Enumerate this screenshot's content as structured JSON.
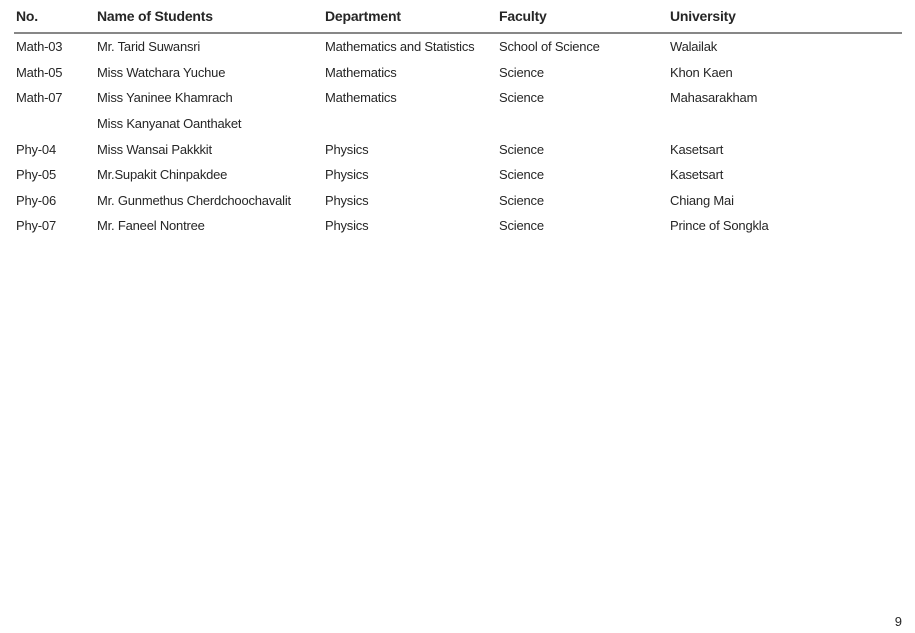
{
  "page": {
    "number": "9"
  },
  "colors": {
    "background": "#ffffff",
    "text": "#262626",
    "header_rule": "#878787"
  },
  "table": {
    "columns": [
      {
        "key": "no",
        "label": "No."
      },
      {
        "key": "name",
        "label": "Name of Students"
      },
      {
        "key": "department",
        "label": "Department"
      },
      {
        "key": "faculty",
        "label": "Faculty"
      },
      {
        "key": "university",
        "label": "University"
      }
    ],
    "rows": [
      [
        "Math-03",
        "Mr. Tarid Suwansri",
        "Mathematics and Statistics",
        "School of Science",
        "Walailak"
      ],
      [
        "Math-05",
        "Miss Watchara Yuchue",
        "Mathematics",
        "Science",
        "Khon Kaen"
      ],
      [
        "Math-07",
        "Miss Yaninee Khamrach",
        "Mathematics",
        "Science",
        "Mahasarakham"
      ],
      [
        "",
        "Miss Kanyanat Oanthaket",
        "",
        "",
        ""
      ],
      [
        "Phy-04",
        "Miss Wansai Pakkkit",
        "Physics",
        "Science",
        "Kasetsart"
      ],
      [
        "Phy-05",
        "Mr.Supakit Chinpakdee",
        "Physics",
        "Science",
        "Kasetsart"
      ],
      [
        "Phy-06",
        "Mr. Gunmethus Cherdchoochavalit",
        "Physics",
        "Science",
        "Chiang Mai"
      ],
      [
        "Phy-07",
        "Mr. Faneel Nontree",
        "Physics",
        "Science",
        "Prince of Songkla"
      ]
    ]
  }
}
